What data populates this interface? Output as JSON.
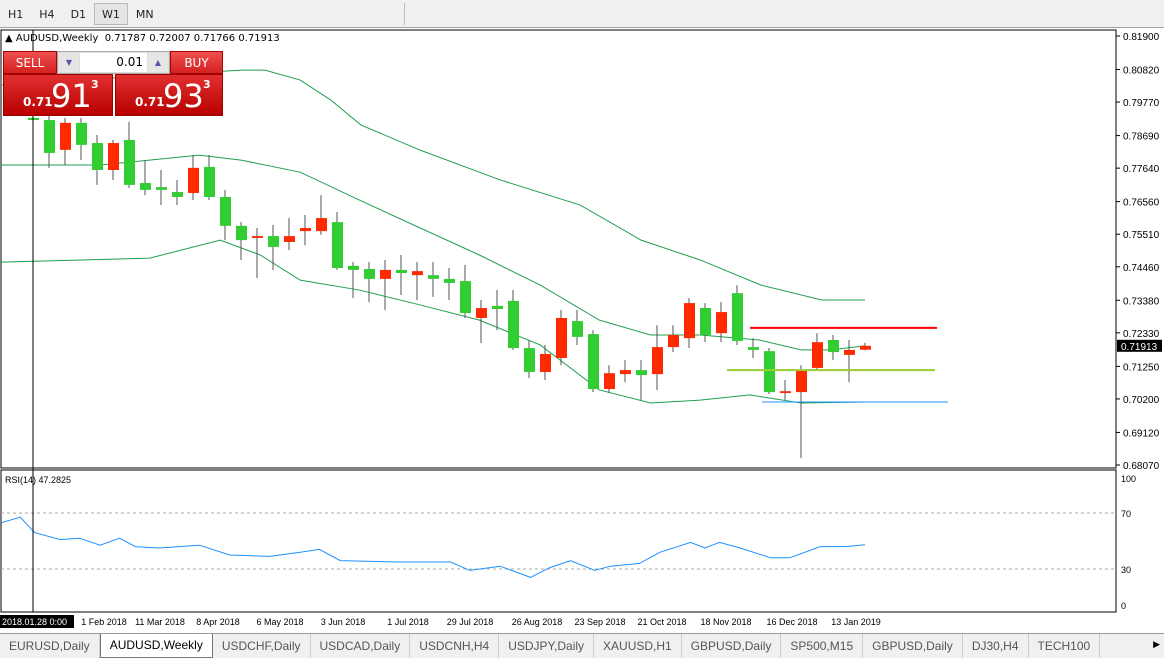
{
  "toolbar": {
    "timeframes": [
      "H1",
      "H4",
      "D1",
      "W1",
      "MN"
    ],
    "active": "W1"
  },
  "chart": {
    "symbol_title": "AUDUSD,Weekly",
    "ohlc_readout": "0.71787 0.72007 0.71766 0.71913",
    "current_price": "0.71913",
    "price_ticks": [
      "0.81900",
      "0.80820",
      "0.79770",
      "0.78690",
      "0.77640",
      "0.76560",
      "0.75510",
      "0.74460",
      "0.73380",
      "0.72330",
      "0.71250",
      "0.70200",
      "0.69120",
      "0.68070"
    ],
    "date_labels": [
      "1 Feb 2018",
      "11 Mar 2018",
      "8 Apr 2018",
      "6 May 2018",
      "3 Jun 2018",
      "1 Jul 2018",
      "29 Jul 2018",
      "26 Aug 2018",
      "23 Sep 2018",
      "21 Oct 2018",
      "18 Nov 2018",
      "16 Dec 2018",
      "13 Jan 2019"
    ],
    "crosshair_date": "2018.01.28 0:00",
    "colors": {
      "bull": "#ff2a00",
      "bear": "#32cd32",
      "bands": "#20a050",
      "rsi": "#1e90ff",
      "line_red": "#ff0000",
      "line_yellow": "#9acd32",
      "line_blue": "#1e90ff"
    },
    "hlines": [
      {
        "price": 0.7249,
        "color": "#ff0000"
      },
      {
        "price": 0.7113,
        "color": "#9acd32"
      },
      {
        "price": 0.701,
        "color": "#1e90ff"
      }
    ]
  },
  "trade_panel": {
    "sell_label": "SELL",
    "buy_label": "BUY",
    "lot": "0.01",
    "sell": {
      "small": "0.71",
      "big": "91",
      "sup": "3"
    },
    "buy": {
      "small": "0.71",
      "big": "93",
      "sup": "3"
    }
  },
  "rsi": {
    "label": "RSI(14) 47.2825",
    "levels": [
      "100",
      "70",
      "30",
      "0"
    ]
  },
  "tabs": [
    "EURUSD,Daily",
    "AUDUSD,Weekly",
    "USDCHF,Daily",
    "USDCAD,Daily",
    "USDCNH,H4",
    "USDJPY,Daily",
    "XAUUSD,H1",
    "GBPUSD,Daily",
    "SP500,M15",
    "GBPUSD,Daily",
    "DJ30,H4",
    "TECH100"
  ],
  "active_tab": "AUDUSD,Weekly",
  "chart_data": {
    "type": "candlestick",
    "ylim": [
      0.6807,
      0.819
    ],
    "ohlc": [
      [
        0.7926,
        0.7945,
        0.7919,
        0.7919
      ],
      [
        0.7919,
        0.7935,
        0.7765,
        0.7813
      ],
      [
        0.7823,
        0.7926,
        0.7774,
        0.791
      ],
      [
        0.791,
        0.7926,
        0.779,
        0.7839
      ],
      [
        0.7845,
        0.7871,
        0.771,
        0.7758
      ],
      [
        0.7758,
        0.7855,
        0.7726,
        0.7845
      ],
      [
        0.7855,
        0.7913,
        0.77,
        0.771
      ],
      [
        0.7716,
        0.779,
        0.7677,
        0.7694
      ],
      [
        0.7703,
        0.7758,
        0.7645,
        0.7694
      ],
      [
        0.7687,
        0.7726,
        0.7645,
        0.7671
      ],
      [
        0.7684,
        0.7806,
        0.7661,
        0.7765
      ],
      [
        0.7768,
        0.7806,
        0.7661,
        0.7671
      ],
      [
        0.7671,
        0.7694,
        0.7532,
        0.7578
      ],
      [
        0.7578,
        0.759,
        0.7468,
        0.7532
      ],
      [
        0.7539,
        0.7571,
        0.741,
        0.7545
      ],
      [
        0.7545,
        0.7581,
        0.7436,
        0.751
      ],
      [
        0.7526,
        0.7603,
        0.75,
        0.7545
      ],
      [
        0.7561,
        0.7613,
        0.7516,
        0.7571
      ],
      [
        0.7561,
        0.7677,
        0.7549,
        0.7603
      ],
      [
        0.759,
        0.7623,
        0.7436,
        0.7442
      ],
      [
        0.7449,
        0.7461,
        0.7345,
        0.7436
      ],
      [
        0.7439,
        0.7461,
        0.7332,
        0.7407
      ],
      [
        0.7407,
        0.7468,
        0.7307,
        0.7436
      ],
      [
        0.7436,
        0.7484,
        0.7355,
        0.7426
      ],
      [
        0.7419,
        0.7461,
        0.7339,
        0.7432
      ],
      [
        0.7419,
        0.7461,
        0.7349,
        0.7407
      ],
      [
        0.7407,
        0.7442,
        0.7339,
        0.7394
      ],
      [
        0.74,
        0.7452,
        0.7281,
        0.7297
      ],
      [
        0.7281,
        0.7339,
        0.72,
        0.7313
      ],
      [
        0.732,
        0.7371,
        0.7242,
        0.731
      ],
      [
        0.7336,
        0.7371,
        0.7178,
        0.7184
      ],
      [
        0.7184,
        0.721,
        0.7087,
        0.7107
      ],
      [
        0.7107,
        0.7194,
        0.7081,
        0.7165
      ],
      [
        0.7152,
        0.7307,
        0.7129,
        0.7281
      ],
      [
        0.7271,
        0.7307,
        0.7194,
        0.722
      ],
      [
        0.7229,
        0.7242,
        0.7042,
        0.7052
      ],
      [
        0.7052,
        0.7129,
        0.7039,
        0.7103
      ],
      [
        0.71,
        0.7145,
        0.7074,
        0.7113
      ],
      [
        0.7113,
        0.7145,
        0.7016,
        0.7097
      ],
      [
        0.71,
        0.7258,
        0.7049,
        0.7187
      ],
      [
        0.7187,
        0.7258,
        0.7171,
        0.7226
      ],
      [
        0.7216,
        0.7345,
        0.7184,
        0.7329
      ],
      [
        0.7313,
        0.7329,
        0.7203,
        0.7226
      ],
      [
        0.7232,
        0.7332,
        0.7203,
        0.73
      ],
      [
        0.7361,
        0.7387,
        0.7194,
        0.7207
      ],
      [
        0.7187,
        0.7216,
        0.7152,
        0.7178
      ],
      [
        0.7174,
        0.7184,
        0.7036,
        0.7042
      ],
      [
        0.7039,
        0.7081,
        0.7016,
        0.7045
      ],
      [
        0.7042,
        0.7129,
        0.6829,
        0.7113
      ],
      [
        0.712,
        0.7232,
        0.7113,
        0.7203
      ],
      [
        0.721,
        0.7226,
        0.7145,
        0.7171
      ],
      [
        0.7162,
        0.721,
        0.7074,
        0.7178
      ],
      [
        0.71787,
        0.72007,
        0.71766,
        0.71913
      ]
    ],
    "bb_upper": [
      [
        -2,
        0.8032
      ],
      [
        13,
        0.808
      ],
      [
        14.5,
        0.808
      ],
      [
        16.7,
        0.8048
      ],
      [
        18.6,
        0.7984
      ],
      [
        20.5,
        0.7903
      ],
      [
        24.2,
        0.7822
      ],
      [
        29.2,
        0.7726
      ],
      [
        34.2,
        0.7645
      ],
      [
        38,
        0.7532
      ],
      [
        41.7,
        0.7468
      ],
      [
        45.5,
        0.7387
      ],
      [
        49.3,
        0.7339
      ],
      [
        52,
        0.7339
      ]
    ],
    "bb_middle": [
      [
        -2,
        0.7774
      ],
      [
        4.2,
        0.7774
      ],
      [
        10.4,
        0.7806
      ],
      [
        13,
        0.779
      ],
      [
        16.7,
        0.7751
      ],
      [
        20.4,
        0.7661
      ],
      [
        24.2,
        0.7571
      ],
      [
        27.9,
        0.7484
      ],
      [
        31.7,
        0.7387
      ],
      [
        35.4,
        0.7274
      ],
      [
        38.6,
        0.7226
      ],
      [
        41.7,
        0.7226
      ],
      [
        45.4,
        0.721
      ],
      [
        48,
        0.7178
      ],
      [
        49.8,
        0.7178
      ],
      [
        52,
        0.7191
      ]
    ],
    "bb_lower": [
      [
        -2,
        0.7461
      ],
      [
        7.3,
        0.7474
      ],
      [
        11.7,
        0.7532
      ],
      [
        14.2,
        0.7484
      ],
      [
        16.7,
        0.7403
      ],
      [
        20.4,
        0.7371
      ],
      [
        24.2,
        0.7323
      ],
      [
        27.9,
        0.7274
      ],
      [
        31.7,
        0.7194
      ],
      [
        35.4,
        0.7049
      ],
      [
        38.6,
        0.7007
      ],
      [
        41.7,
        0.7016
      ],
      [
        44.8,
        0.7033
      ],
      [
        48,
        0.7007
      ],
      [
        52,
        0.701
      ]
    ],
    "rsi": [
      [
        -2,
        63
      ],
      [
        -0.8,
        67
      ],
      [
        0.1,
        56
      ],
      [
        1.7,
        51
      ],
      [
        2.9,
        52
      ],
      [
        4.2,
        47
      ],
      [
        5.4,
        52
      ],
      [
        6.4,
        46
      ],
      [
        7.9,
        45
      ],
      [
        10.4,
        47
      ],
      [
        12.3,
        40
      ],
      [
        14.8,
        39
      ],
      [
        16.7,
        42
      ],
      [
        17.9,
        44
      ],
      [
        19.2,
        36
      ],
      [
        22.9,
        35
      ],
      [
        26.1,
        35
      ],
      [
        27.3,
        29
      ],
      [
        29.2,
        32
      ],
      [
        31.1,
        24
      ],
      [
        32.3,
        31
      ],
      [
        33.6,
        36
      ],
      [
        35.1,
        29
      ],
      [
        36.1,
        32
      ],
      [
        37.9,
        34
      ],
      [
        39.2,
        42
      ],
      [
        41.1,
        49
      ],
      [
        42,
        45
      ],
      [
        42.9,
        49
      ],
      [
        44.2,
        45
      ],
      [
        46.1,
        38
      ],
      [
        47.3,
        38
      ],
      [
        49.2,
        46
      ],
      [
        50.8,
        46
      ],
      [
        52,
        47.28
      ]
    ]
  }
}
